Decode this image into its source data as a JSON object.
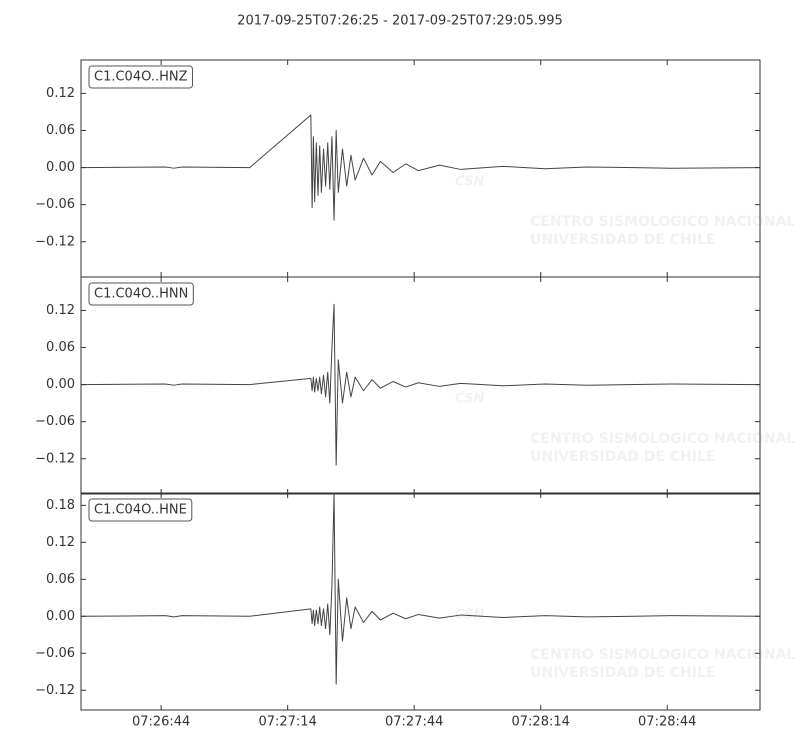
{
  "title": "2017-09-25T07:26:25  -  2017-09-25T07:29:05.995",
  "watermark": {
    "logo": "CSN",
    "line1": "CENTRO SISMOLOGICO NACIONAL",
    "line2": "UNIVERSIDAD DE CHILE"
  },
  "chart_data": [
    {
      "type": "line",
      "label": "C1.C04O..HNZ",
      "color": "#444444",
      "x": [
        0,
        20,
        22,
        24,
        40,
        54.5,
        54.8,
        55.1,
        55.4,
        55.8,
        56.2,
        56.6,
        57,
        57.5,
        58,
        58.5,
        59,
        59.5,
        60,
        60.5,
        61,
        62,
        63,
        64,
        65,
        67,
        69,
        71,
        74,
        77,
        80,
        85,
        90,
        100,
        110,
        120,
        140,
        160.9
      ],
      "values": [
        0,
        0.001,
        -0.001,
        0.001,
        0,
        0.085,
        -0.065,
        0.05,
        -0.055,
        0.04,
        -0.045,
        0.035,
        -0.04,
        0.03,
        -0.03,
        0.04,
        -0.035,
        0.05,
        -0.085,
        0.06,
        -0.04,
        0.03,
        -0.03,
        0.02,
        -0.02,
        0.015,
        -0.012,
        0.01,
        -0.008,
        0.006,
        -0.005,
        0.004,
        -0.003,
        0.002,
        -0.002,
        0.001,
        -0.001,
        0
      ],
      "xlim": [
        0,
        160.995
      ],
      "ylim": [
        -0.177,
        0.174
      ],
      "xticks": [
        {
          "value": 19,
          "label": "07:26:44"
        },
        {
          "value": 49,
          "label": "07:27:14"
        },
        {
          "value": 79,
          "label": "07:27:44"
        },
        {
          "value": 109,
          "label": "07:28:14"
        },
        {
          "value": 139,
          "label": "07:28:44"
        }
      ],
      "yticks": [
        0.12,
        0.06,
        {
          "value": 0,
          "label": "0.00"
        },
        {
          "value": -0.06,
          "label": "−0.06"
        },
        {
          "value": -0.12,
          "label": "−0.12"
        }
      ]
    },
    {
      "type": "line",
      "label": "C1.C04O..HNN",
      "color": "#444444",
      "x": [
        0,
        20,
        22,
        24,
        40,
        54.5,
        54.8,
        55.1,
        55.4,
        55.8,
        56.2,
        56.6,
        57,
        57.5,
        58,
        58.5,
        59,
        59.5,
        60,
        60.5,
        61,
        62,
        63,
        64,
        65,
        67,
        69,
        71,
        74,
        77,
        80,
        85,
        90,
        100,
        110,
        120,
        140,
        160.9
      ],
      "values": [
        0,
        0.001,
        -0.001,
        0.001,
        0,
        0.01,
        -0.01,
        0.012,
        -0.012,
        0.01,
        -0.01,
        0.012,
        -0.015,
        0.015,
        -0.02,
        0.02,
        -0.03,
        0.06,
        0.13,
        -0.13,
        0.04,
        -0.03,
        0.02,
        -0.02,
        0.012,
        -0.01,
        0.008,
        -0.006,
        0.005,
        -0.004,
        0.003,
        -0.003,
        0.002,
        -0.002,
        0.001,
        -0.001,
        0.001,
        0
      ],
      "xlim": [
        0,
        160.995
      ],
      "ylim": [
        -0.177,
        0.174
      ],
      "xticks": [
        {
          "value": 19,
          "label": "07:26:44"
        },
        {
          "value": 49,
          "label": "07:27:14"
        },
        {
          "value": 79,
          "label": "07:27:44"
        },
        {
          "value": 109,
          "label": "07:28:14"
        },
        {
          "value": 139,
          "label": "07:28:44"
        }
      ],
      "yticks": [
        0.12,
        0.06,
        {
          "value": 0,
          "label": "0.00"
        },
        {
          "value": -0.06,
          "label": "−0.06"
        },
        {
          "value": -0.12,
          "label": "−0.12"
        }
      ]
    },
    {
      "type": "line",
      "label": "C1.C04O..HNE",
      "color": "#444444",
      "x": [
        0,
        20,
        22,
        24,
        40,
        54.5,
        54.8,
        55.1,
        55.4,
        55.8,
        56.2,
        56.6,
        57,
        57.5,
        58,
        58.5,
        59,
        59.5,
        60,
        60.5,
        61,
        62,
        63,
        64,
        65,
        67,
        69,
        71,
        74,
        77,
        80,
        85,
        90,
        100,
        110,
        120,
        140,
        160.9
      ],
      "values": [
        0,
        0.001,
        -0.001,
        0.001,
        0,
        0.012,
        -0.012,
        0.01,
        -0.015,
        0.01,
        -0.012,
        0.015,
        -0.015,
        0.012,
        -0.02,
        0.02,
        -0.03,
        0.05,
        0.2,
        -0.11,
        0.06,
        -0.04,
        0.03,
        -0.02,
        0.015,
        -0.01,
        0.008,
        -0.006,
        0.005,
        -0.004,
        0.003,
        -0.003,
        0.002,
        -0.002,
        0.001,
        -0.001,
        0.001,
        0
      ],
      "xlim": [
        0,
        160.995
      ],
      "ylim": [
        -0.152,
        0.2
      ],
      "xticks": [
        {
          "value": 19,
          "label": "07:26:44"
        },
        {
          "value": 49,
          "label": "07:27:14"
        },
        {
          "value": 79,
          "label": "07:27:44"
        },
        {
          "value": 109,
          "label": "07:28:14"
        },
        {
          "value": 139,
          "label": "07:28:44"
        }
      ],
      "yticks": [
        0.18,
        0.12,
        0.06,
        {
          "value": 0,
          "label": "0.00"
        },
        {
          "value": -0.06,
          "label": "−0.06"
        },
        {
          "value": -0.12,
          "label": "−0.12"
        }
      ]
    }
  ]
}
